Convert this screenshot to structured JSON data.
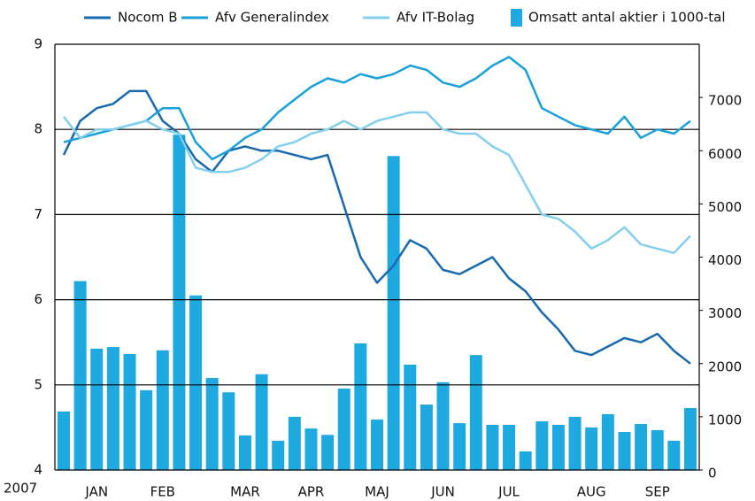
{
  "chart_data": {
    "type": "combo",
    "year_label": "2007",
    "categories": [
      null,
      null,
      "JAN",
      null,
      null,
      null,
      "FEB",
      null,
      null,
      null,
      null,
      "MAR",
      null,
      null,
      null,
      "APR",
      null,
      null,
      null,
      "MAJ",
      null,
      null,
      null,
      "JUN",
      null,
      null,
      null,
      "JUL",
      null,
      null,
      null,
      null,
      "AUG",
      null,
      null,
      null,
      "SEP",
      null,
      null
    ],
    "ylim": [
      4,
      9
    ],
    "yticks": [
      4,
      5,
      6,
      7,
      8,
      9
    ],
    "y2lim": [
      0,
      8000
    ],
    "y2ticks": [
      0,
      1000,
      2000,
      3000,
      4000,
      5000,
      6000,
      7000
    ],
    "grid": true,
    "series": [
      {
        "name": "Nocom B",
        "type": "line",
        "color": "#1769b0",
        "values": [
          7.7,
          8.1,
          8.25,
          8.3,
          8.45,
          8.45,
          8.1,
          7.95,
          7.65,
          7.5,
          7.75,
          7.8,
          7.75,
          7.75,
          7.7,
          7.65,
          7.7,
          7.1,
          6.5,
          6.2,
          6.4,
          6.7,
          6.6,
          6.35,
          6.3,
          6.4,
          6.5,
          6.25,
          6.1,
          5.85,
          5.65,
          5.4,
          5.35,
          5.45,
          5.55,
          5.5,
          5.6,
          5.4,
          5.25
        ]
      },
      {
        "name": "Afv Generalindex",
        "type": "line",
        "color": "#18a0db",
        "values": [
          7.85,
          7.9,
          7.95,
          8.0,
          8.05,
          8.1,
          8.25,
          8.25,
          7.85,
          7.65,
          7.75,
          7.9,
          8.0,
          8.2,
          8.35,
          8.5,
          8.6,
          8.55,
          8.65,
          8.6,
          8.65,
          8.75,
          8.7,
          8.55,
          8.5,
          8.6,
          8.75,
          8.85,
          8.7,
          8.25,
          8.15,
          8.05,
          8.0,
          7.95,
          8.15,
          7.9,
          8.0,
          7.95,
          8.1
        ]
      },
      {
        "name": "Afv IT-Bolag",
        "type": "line",
        "color": "#82cfee",
        "values": [
          8.15,
          7.9,
          8.0,
          8.0,
          8.05,
          8.1,
          8.0,
          7.95,
          7.55,
          7.5,
          7.5,
          7.55,
          7.65,
          7.8,
          7.85,
          7.95,
          8.0,
          8.1,
          8.0,
          8.1,
          8.15,
          8.2,
          8.2,
          8.0,
          7.95,
          7.95,
          7.8,
          7.7,
          7.35,
          7.0,
          6.95,
          6.8,
          6.6,
          6.7,
          6.85,
          6.65,
          6.6,
          6.55,
          6.75
        ]
      },
      {
        "name": "Omsatt antal aktier i 1000-tal",
        "type": "bar",
        "axis": "y2",
        "color": "#1ea9e1",
        "values": [
          1100,
          3550,
          2280,
          2310,
          2180,
          1500,
          2250,
          6300,
          3280,
          1730,
          1460,
          650,
          1800,
          550,
          1000,
          780,
          660,
          1530,
          2380,
          950,
          5900,
          1980,
          1230,
          1650,
          880,
          2160,
          850,
          850,
          350,
          915,
          850,
          1000,
          800,
          1050,
          715,
          865,
          750,
          550,
          1165
        ]
      }
    ]
  }
}
